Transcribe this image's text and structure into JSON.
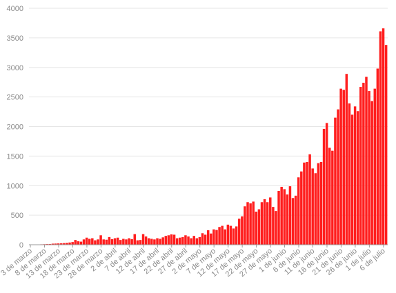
{
  "chart_data": {
    "type": "bar",
    "title": "",
    "xlabel": "",
    "ylabel": "",
    "ylim": [
      0,
      4000
    ],
    "yticks": [
      0,
      500,
      1000,
      1500,
      2000,
      2500,
      3000,
      3500,
      4000
    ],
    "grid": true,
    "start_date": "2020-03-03",
    "xtick_labels": [
      "3 de marzo",
      "8 de marzo",
      "13 de marzo",
      "18 de marzo",
      "23 de marzo",
      "28 de marzo",
      "2 de abril",
      "7 de abril",
      "12 de abril",
      "17 de abril",
      "22 de abril",
      "27 de abril",
      "2 de mayo",
      "7 de mayo",
      "12 de mayo",
      "17 de mayo",
      "22 de mayo",
      "27 de mayo",
      "1 de junio",
      "6 de junio",
      "11 de junio",
      "16 de junio",
      "21 de junio",
      "26 de junio",
      "1 de julio",
      "6 de julio"
    ],
    "values": [
      1,
      3,
      5,
      4,
      7,
      9,
      11,
      12,
      18,
      20,
      22,
      25,
      28,
      32,
      38,
      45,
      80,
      60,
      52,
      90,
      120,
      100,
      110,
      75,
      90,
      160,
      90,
      85,
      130,
      95,
      110,
      120,
      80,
      100,
      90,
      110,
      95,
      180,
      75,
      80,
      180,
      140,
      110,
      100,
      90,
      110,
      100,
      125,
      150,
      160,
      175,
      170,
      110,
      120,
      130,
      160,
      140,
      110,
      150,
      110,
      130,
      195,
      170,
      245,
      190,
      260,
      250,
      300,
      320,
      260,
      340,
      320,
      275,
      310,
      440,
      480,
      650,
      720,
      700,
      730,
      560,
      600,
      720,
      770,
      720,
      800,
      640,
      570,
      910,
      980,
      940,
      850,
      990,
      790,
      830,
      1140,
      1240,
      1390,
      1400,
      1530,
      1290,
      1210,
      1380,
      1400,
      1960,
      2060,
      1640,
      1590,
      2150,
      2290,
      2640,
      2620,
      2890,
      2390,
      2200,
      2340,
      2260,
      2670,
      2740,
      2840,
      2600,
      2430,
      2640,
      2980,
      3610,
      3660,
      3380
    ],
    "bar_color": "#ff1e1e"
  }
}
